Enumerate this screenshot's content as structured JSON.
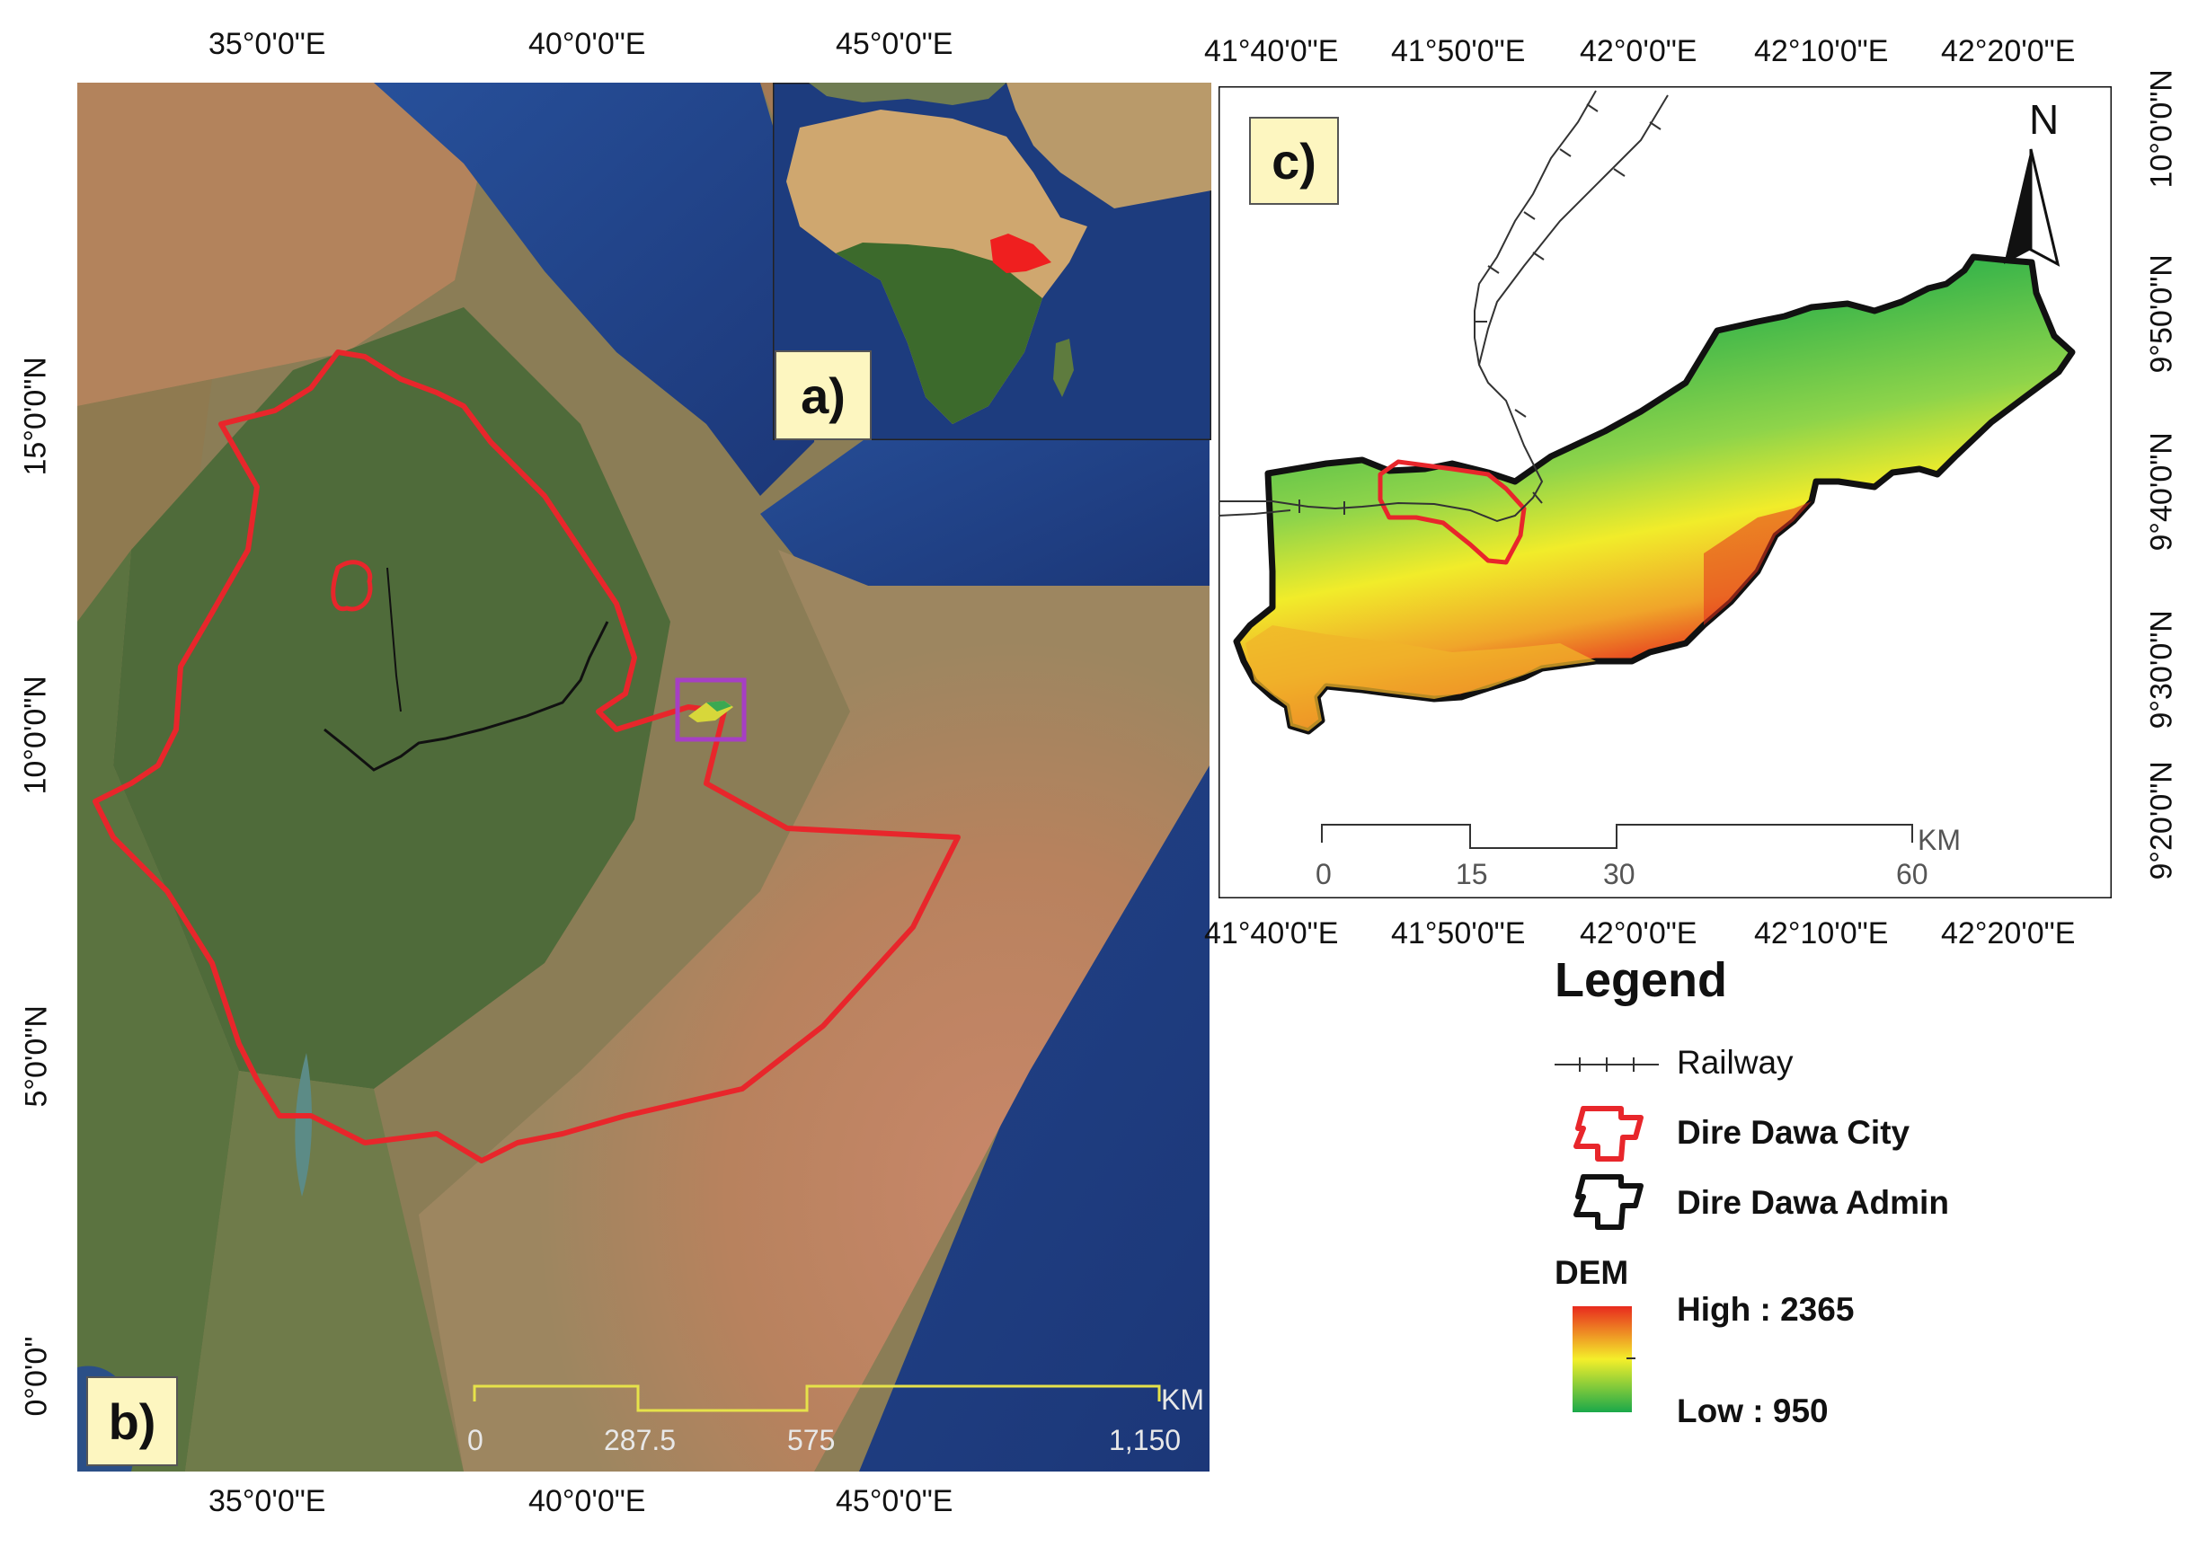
{
  "panels": {
    "a": {
      "label": "a)"
    },
    "b": {
      "label": "b)",
      "lon_ticks": [
        "35°0'0\"E",
        "40°0'0\"E",
        "45°0'0\"E"
      ],
      "lat_ticks": [
        "15°0'0\"N",
        "10°0'0\"N",
        "5°0'0\"N",
        "0°0'0\""
      ],
      "scale": {
        "unit": "KM",
        "labels": [
          "0",
          "287.5",
          "575",
          "1,150"
        ]
      }
    },
    "c": {
      "label": "c)",
      "lon_ticks": [
        "41°40'0\"E",
        "41°50'0\"E",
        "42°0'0\"E",
        "42°10'0\"E",
        "42°20'0\"E"
      ],
      "lat_ticks": [
        "10°0'0\"N",
        "9°50'0\"N",
        "9°40'0\"N",
        "9°30'0\"N",
        "9°20'0\"N"
      ],
      "scale": {
        "unit": "KM",
        "labels": [
          "0",
          "15",
          "30",
          "60"
        ]
      },
      "north_label": "N"
    }
  },
  "legend": {
    "title": "Legend",
    "railway": "Railway",
    "city": "Dire Dawa City",
    "admin": "Dire Dawa Admin",
    "dem_title": "DEM",
    "dem_high": "High : 2365",
    "dem_low": "Low : 950"
  },
  "colors": {
    "boundary_red": "#e8262b",
    "inset_box": "#a63fc4",
    "scale_yellow": "#e6e24a",
    "dem_high": "#e82a1e",
    "dem_mid": "#f4ef2a",
    "dem_low": "#1aa84a",
    "sea": "#1f3f86",
    "land_green": "#4d6a3a",
    "land_desert": "#b07a55"
  }
}
